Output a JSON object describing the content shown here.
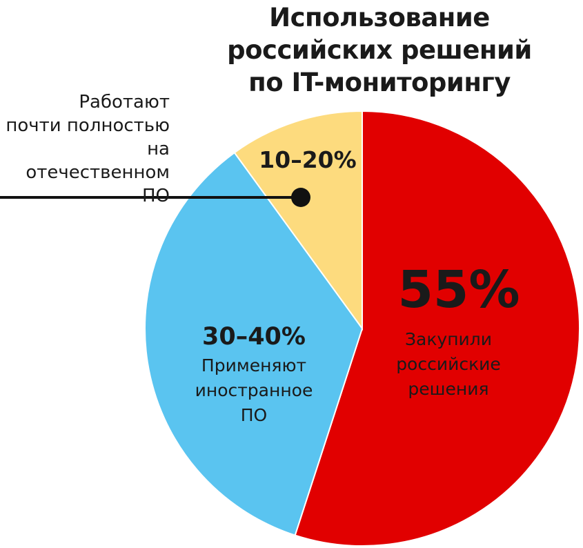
{
  "chart_data": {
    "type": "pie",
    "title_lines": [
      "Использование",
      "российских решений",
      "по IT-мониторингу"
    ],
    "slices": [
      {
        "value": 55,
        "value_label": "55%",
        "description": [
          "Закупили",
          "российские",
          "решения"
        ],
        "color": "#e10000"
      },
      {
        "value": 35,
        "value_label": "30–40%",
        "description": [
          "Применяют",
          "иностранное",
          "ПО"
        ],
        "color": "#5ac4f0"
      },
      {
        "value": 10,
        "value_label": "10–20%",
        "description": [],
        "color": "#fddb7e"
      }
    ],
    "callout_lines": [
      "Работают",
      "почти полностью",
      "на отечественном",
      "ПО"
    ]
  }
}
